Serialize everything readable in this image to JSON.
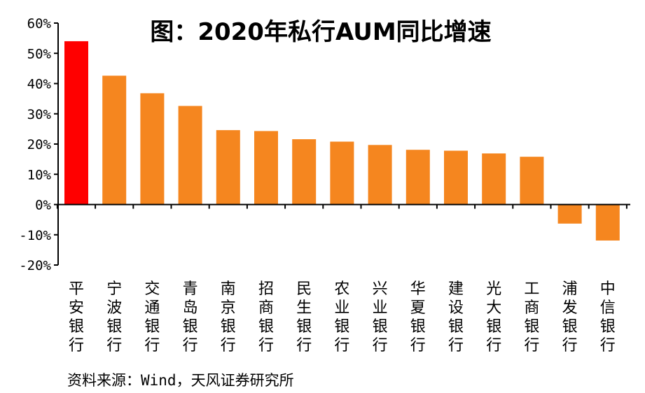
{
  "chart_data": {
    "type": "bar",
    "title": "图：2020年私行AUM同比增速",
    "source": "资料来源：Wind，天风证券研究所",
    "categories": [
      "平安银行",
      "宁波银行",
      "交通银行",
      "青岛银行",
      "南京银行",
      "招商银行",
      "民生银行",
      "农业银行",
      "兴业银行",
      "华夏银行",
      "建设银行",
      "光大银行",
      "工商银行",
      "浦发银行",
      "中信银行"
    ],
    "values": [
      54.0,
      42.6,
      36.8,
      32.6,
      24.6,
      24.3,
      21.6,
      20.8,
      19.7,
      18.1,
      17.8,
      16.9,
      15.8,
      -6.3,
      -11.9
    ],
    "highlight_color": "#ff0000",
    "bar_color": "#f5861f",
    "ylim": [
      -20,
      60
    ],
    "yticks": [
      60,
      50,
      40,
      30,
      20,
      10,
      0,
      -10,
      -20
    ],
    "ytick_labels": [
      "60%",
      "50%",
      "40%",
      "30%",
      "20%",
      "10%",
      "0%",
      "-10%",
      "-20%"
    ],
    "highlight_index": 0,
    "grid": false,
    "legend": "none"
  }
}
